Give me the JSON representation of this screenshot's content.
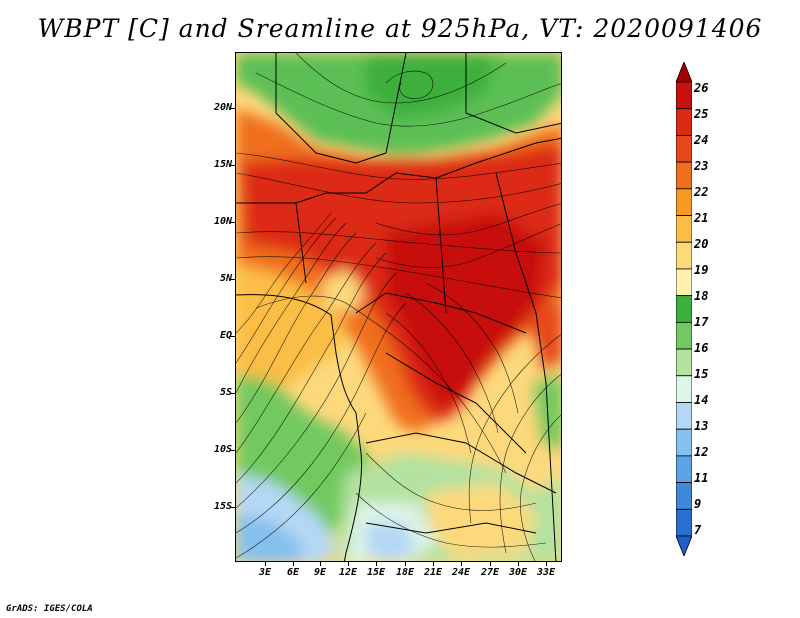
{
  "title": "WBPT [C] and Sreamline at 925hPa, VT: 2020091406",
  "credit": "GrADS: IGES/COLA",
  "map": {
    "variable": "Wet-bulb potential temperature",
    "units": "C",
    "level": "925hPa",
    "valid_time": "2020091406",
    "lat_labels": [
      "20N",
      "15N",
      "10N",
      "5N",
      "EQ",
      "5S",
      "10S",
      "15S"
    ],
    "lon_labels": [
      "3E",
      "6E",
      "9E",
      "12E",
      "15E",
      "18E",
      "21E",
      "24E",
      "27E",
      "30E",
      "33E"
    ]
  },
  "colorbar": {
    "labels": [
      "26",
      "25",
      "24",
      "23",
      "22",
      "21",
      "20",
      "19",
      "18",
      "17",
      "16",
      "15",
      "14",
      "13",
      "12",
      "11",
      "9",
      "7"
    ],
    "colors": [
      "#a50000",
      "#c8100f",
      "#dc2a16",
      "#e8461c",
      "#f06e1e",
      "#f79a23",
      "#fbbd45",
      "#fdd97c",
      "#fff2b0",
      "#3daf3c",
      "#72c95f",
      "#b4e2a0",
      "#def4e8",
      "#b4d8f4",
      "#86c0ee",
      "#5aa4e6",
      "#3f88dc",
      "#2a6fd2",
      "#1f5fc8"
    ]
  }
}
